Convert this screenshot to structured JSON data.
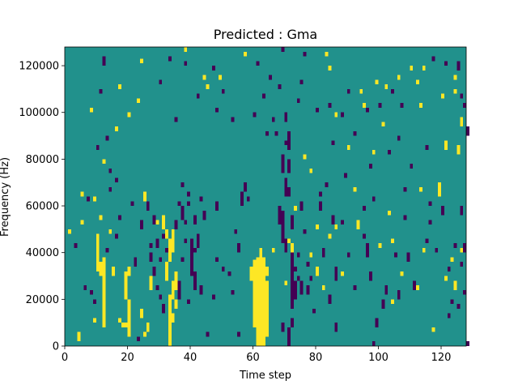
{
  "chart_data": {
    "type": "heatmap",
    "title": "Predicted : Gma",
    "xlabel": "Time step",
    "ylabel": "Frequency (Hz)",
    "xlim": [
      0,
      128
    ],
    "ylim": [
      0,
      128000
    ],
    "xticks": [
      0,
      20,
      40,
      60,
      80,
      100,
      120
    ],
    "yticks": [
      0,
      20000,
      40000,
      60000,
      80000,
      100000,
      120000
    ],
    "grid": false,
    "legend": "none",
    "values": {
      "background": 0,
      "low": -1,
      "high": 1
    },
    "colors": {
      "background": "#21918c",
      "low": "#440154",
      "high": "#fde725"
    },
    "high_cells": [
      [
        61,
        0,
        38
      ],
      [
        62,
        0,
        38
      ],
      [
        63,
        0,
        38
      ],
      [
        60,
        8,
        37
      ],
      [
        64,
        4,
        28
      ],
      [
        59,
        28,
        34
      ],
      [
        60,
        30,
        36
      ],
      [
        64,
        30,
        34
      ],
      [
        62,
        38,
        42
      ],
      [
        33,
        0,
        22
      ],
      [
        34,
        20,
        28
      ],
      [
        35,
        24,
        32
      ],
      [
        32,
        28,
        36
      ],
      [
        33,
        36,
        46
      ],
      [
        34,
        40,
        50
      ],
      [
        32,
        46,
        50
      ],
      [
        31,
        50,
        56
      ],
      [
        34,
        10,
        14
      ],
      [
        35,
        16,
        20
      ],
      [
        18,
        8,
        10
      ],
      [
        19,
        8,
        10
      ],
      [
        20,
        4,
        20
      ],
      [
        19,
        20,
        32
      ],
      [
        12,
        8,
        38
      ],
      [
        11,
        30,
        36
      ],
      [
        10,
        32,
        48
      ],
      [
        15,
        30,
        34
      ],
      [
        20,
        30,
        34
      ],
      [
        26,
        6,
        10
      ],
      [
        27,
        24,
        30
      ],
      [
        24,
        12,
        16
      ],
      [
        29,
        52,
        54
      ],
      [
        9,
        10,
        12
      ],
      [
        4,
        2,
        6
      ],
      [
        1,
        48,
        50
      ],
      [
        5,
        64,
        66
      ],
      [
        9,
        62,
        64
      ],
      [
        17,
        10,
        12
      ],
      [
        5,
        52,
        54
      ],
      [
        25,
        62,
        66
      ],
      [
        11,
        54,
        56
      ],
      [
        14,
        48,
        50
      ],
      [
        66,
        40,
        42
      ],
      [
        72,
        40,
        44
      ],
      [
        71,
        44,
        46
      ],
      [
        73,
        58,
        60
      ],
      [
        80,
        50,
        52
      ],
      [
        70,
        26,
        28
      ],
      [
        78,
        38,
        40
      ],
      [
        80,
        30,
        34
      ],
      [
        82,
        24,
        26
      ],
      [
        84,
        46,
        48
      ],
      [
        88,
        30,
        32
      ],
      [
        86,
        50,
        52
      ],
      [
        92,
        66,
        68
      ],
      [
        93,
        50,
        54
      ],
      [
        103,
        56,
        58
      ],
      [
        100,
        42,
        44
      ],
      [
        104,
        44,
        46
      ],
      [
        107,
        30,
        32
      ],
      [
        112,
        24,
        26
      ],
      [
        114,
        40,
        42
      ],
      [
        113,
        66,
        68
      ],
      [
        119,
        64,
        70
      ],
      [
        121,
        28,
        30
      ],
      [
        123,
        36,
        38
      ],
      [
        125,
        82,
        86
      ],
      [
        126,
        40,
        42
      ],
      [
        117,
        6,
        8
      ],
      [
        104,
        18,
        20
      ],
      [
        124,
        24,
        28
      ],
      [
        17,
        110,
        112
      ],
      [
        24,
        121,
        123
      ],
      [
        99,
        112,
        114
      ],
      [
        102,
        110,
        112
      ],
      [
        106,
        114,
        116
      ],
      [
        110,
        118,
        120
      ],
      [
        113,
        102,
        104
      ],
      [
        114,
        118,
        120
      ],
      [
        120,
        106,
        108
      ],
      [
        124,
        108,
        110
      ],
      [
        126,
        94,
        98
      ],
      [
        121,
        84,
        88
      ],
      [
        112,
        112,
        114
      ],
      [
        124,
        114,
        116
      ],
      [
        94,
        108,
        110
      ],
      [
        95,
        102,
        104
      ],
      [
        101,
        94,
        96
      ],
      [
        90,
        84,
        86
      ],
      [
        78,
        74,
        76
      ],
      [
        76,
        80,
        82
      ],
      [
        86,
        98,
        100
      ],
      [
        98,
        82,
        84
      ],
      [
        45,
        110,
        112
      ],
      [
        44,
        114,
        116
      ],
      [
        49,
        114,
        116
      ],
      [
        38,
        126,
        128
      ],
      [
        57,
        124,
        126
      ],
      [
        83,
        124,
        126
      ],
      [
        84,
        118,
        120
      ],
      [
        25,
        4,
        6
      ],
      [
        23,
        104,
        106
      ],
      [
        20,
        98,
        100
      ],
      [
        8,
        100,
        102
      ],
      [
        16,
        92,
        94
      ],
      [
        12,
        78,
        80
      ]
    ],
    "low_cells": [
      [
        68,
        52,
        60
      ],
      [
        69,
        44,
        58
      ],
      [
        70,
        40,
        46
      ],
      [
        72,
        16,
        44
      ],
      [
        72,
        50,
        56
      ],
      [
        71,
        64,
        68
      ],
      [
        70,
        64,
        72
      ],
      [
        69,
        74,
        82
      ],
      [
        70,
        86,
        88
      ],
      [
        71,
        84,
        92
      ],
      [
        71,
        74,
        80
      ],
      [
        73,
        20,
        28
      ],
      [
        74,
        28,
        30
      ],
      [
        74,
        38,
        40
      ],
      [
        75,
        58,
        62
      ],
      [
        72,
        8,
        12
      ],
      [
        71,
        0,
        8
      ],
      [
        69,
        6,
        10
      ],
      [
        75,
        22,
        28
      ],
      [
        73,
        32,
        34
      ],
      [
        70,
        96,
        100
      ],
      [
        68,
        110,
        112
      ],
      [
        66,
        96,
        98
      ],
      [
        67,
        90,
        92
      ],
      [
        69,
        126,
        128
      ],
      [
        40,
        30,
        46
      ],
      [
        41,
        24,
        32
      ],
      [
        42,
        42,
        48
      ],
      [
        38,
        44,
        46
      ],
      [
        37,
        36,
        38
      ],
      [
        36,
        20,
        28
      ],
      [
        37,
        54,
        60
      ],
      [
        39,
        18,
        20
      ],
      [
        36,
        60,
        62
      ],
      [
        43,
        22,
        26
      ],
      [
        41,
        52,
        56
      ],
      [
        38,
        52,
        54
      ],
      [
        37,
        68,
        70
      ],
      [
        39,
        64,
        66
      ],
      [
        31,
        46,
        48
      ],
      [
        30,
        20,
        22
      ],
      [
        29,
        24,
        26
      ],
      [
        32,
        40,
        42
      ],
      [
        35,
        50,
        54
      ],
      [
        31,
        14,
        18
      ],
      [
        30,
        36,
        38
      ],
      [
        29,
        42,
        46
      ],
      [
        28,
        52,
        56
      ],
      [
        28,
        30,
        34
      ],
      [
        27,
        42,
        44
      ],
      [
        41,
        40,
        42
      ],
      [
        39,
        60,
        62
      ],
      [
        43,
        62,
        64
      ],
      [
        44,
        54,
        58
      ],
      [
        45,
        4,
        6
      ],
      [
        47,
        20,
        22
      ],
      [
        48,
        36,
        38
      ],
      [
        48,
        58,
        62
      ],
      [
        50,
        32,
        34
      ],
      [
        52,
        30,
        32
      ],
      [
        53,
        22,
        24
      ],
      [
        54,
        48,
        50
      ],
      [
        55,
        40,
        44
      ],
      [
        56,
        60,
        66
      ],
      [
        57,
        66,
        70
      ],
      [
        58,
        62,
        64
      ],
      [
        55,
        4,
        6
      ],
      [
        23,
        2,
        4
      ],
      [
        22,
        34,
        38
      ],
      [
        24,
        50,
        54
      ],
      [
        21,
        60,
        62
      ],
      [
        27,
        36,
        40
      ],
      [
        26,
        58,
        62
      ],
      [
        8,
        22,
        24
      ],
      [
        6,
        24,
        26
      ],
      [
        9,
        18,
        20
      ],
      [
        3,
        42,
        44
      ],
      [
        13,
        40,
        42
      ],
      [
        17,
        54,
        56
      ],
      [
        16,
        46,
        48
      ],
      [
        14,
        66,
        68
      ],
      [
        76,
        48,
        50
      ],
      [
        77,
        22,
        26
      ],
      [
        77,
        34,
        36
      ],
      [
        78,
        28,
        30
      ],
      [
        79,
        14,
        16
      ],
      [
        80,
        32,
        34
      ],
      [
        81,
        58,
        62
      ],
      [
        82,
        38,
        42
      ],
      [
        84,
        18,
        22
      ],
      [
        86,
        6,
        10
      ],
      [
        86,
        28,
        34
      ],
      [
        83,
        68,
        70
      ],
      [
        85,
        52,
        56
      ],
      [
        88,
        52,
        54
      ],
      [
        90,
        38,
        40
      ],
      [
        92,
        24,
        26
      ],
      [
        95,
        46,
        48
      ],
      [
        96,
        38,
        44
      ],
      [
        97,
        28,
        32
      ],
      [
        98,
        0,
        2
      ],
      [
        99,
        8,
        12
      ],
      [
        101,
        16,
        20
      ],
      [
        102,
        22,
        26
      ],
      [
        105,
        38,
        40
      ],
      [
        106,
        20,
        24
      ],
      [
        108,
        54,
        56
      ],
      [
        109,
        36,
        40
      ],
      [
        111,
        24,
        28
      ],
      [
        116,
        52,
        54
      ],
      [
        118,
        40,
        42
      ],
      [
        122,
        32,
        34
      ],
      [
        124,
        42,
        44
      ],
      [
        125,
        16,
        18
      ],
      [
        127,
        40,
        44
      ],
      [
        126,
        34,
        36
      ],
      [
        127,
        22,
        24
      ],
      [
        123,
        18,
        20
      ],
      [
        128,
        0,
        2
      ],
      [
        76,
        124,
        126
      ],
      [
        75,
        112,
        114
      ],
      [
        74,
        104,
        106
      ],
      [
        80,
        100,
        102
      ],
      [
        84,
        102,
        104
      ],
      [
        88,
        98,
        100
      ],
      [
        90,
        108,
        110
      ],
      [
        96,
        100,
        102
      ],
      [
        100,
        102,
        104
      ],
      [
        104,
        108,
        110
      ],
      [
        106,
        88,
        90
      ],
      [
        110,
        76,
        78
      ],
      [
        115,
        84,
        86
      ],
      [
        108,
        66,
        68
      ],
      [
        98,
        62,
        64
      ],
      [
        95,
        58,
        60
      ],
      [
        120,
        56,
        60
      ],
      [
        126,
        56,
        60
      ],
      [
        122,
        12,
        14
      ],
      [
        115,
        44,
        46
      ],
      [
        116,
        60,
        62
      ],
      [
        63,
        106,
        108
      ],
      [
        65,
        114,
        116
      ],
      [
        61,
        120,
        122
      ],
      [
        60,
        98,
        100
      ],
      [
        64,
        90,
        92
      ],
      [
        53,
        96,
        98
      ],
      [
        50,
        108,
        110
      ],
      [
        47,
        118,
        120
      ],
      [
        48,
        100,
        102
      ],
      [
        42,
        106,
        108
      ],
      [
        35,
        96,
        98
      ],
      [
        38,
        120,
        122
      ],
      [
        33,
        122,
        124
      ],
      [
        30,
        112,
        114
      ],
      [
        12,
        120,
        124
      ],
      [
        11,
        108,
        110
      ],
      [
        13,
        88,
        90
      ],
      [
        10,
        84,
        86
      ],
      [
        7,
        62,
        64
      ],
      [
        16,
        70,
        72
      ],
      [
        14,
        74,
        76
      ],
      [
        128,
        90,
        94
      ],
      [
        127,
        102,
        104
      ],
      [
        126,
        106,
        108
      ],
      [
        125,
        118,
        122
      ],
      [
        121,
        120,
        122
      ],
      [
        117,
        122,
        124
      ],
      [
        81,
        64,
        66
      ],
      [
        85,
        86,
        88
      ],
      [
        89,
        72,
        74
      ],
      [
        92,
        90,
        92
      ],
      [
        97,
        76,
        78
      ],
      [
        103,
        82,
        84
      ],
      [
        107,
        102,
        104
      ]
    ]
  }
}
